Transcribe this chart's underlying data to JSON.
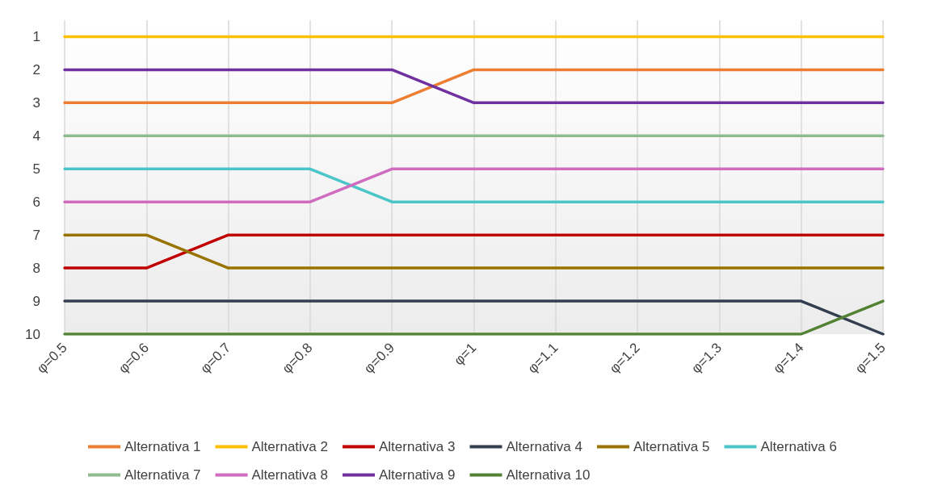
{
  "chart_data": {
    "type": "line",
    "categories": [
      "φ=0.5",
      "φ=0.6",
      "φ=0.7",
      "φ=0.8",
      "φ=0.9",
      "φ=1",
      "φ=1.1",
      "φ=1.2",
      "φ=1.3",
      "φ=1.4",
      "φ=1.5"
    ],
    "ylim": [
      10,
      0.5
    ],
    "yticks": [
      1,
      2,
      3,
      4,
      5,
      6,
      7,
      8,
      9,
      10
    ],
    "grid": "x",
    "legend": "bottom",
    "marker": "none",
    "line_style": "solid",
    "series": [
      {
        "name": "Alternativa 1",
        "color": "#ed7d31",
        "values": [
          3,
          3,
          3,
          3,
          3,
          2,
          2,
          2,
          2,
          2,
          2
        ]
      },
      {
        "name": "Alternativa 2",
        "color": "#ffc000",
        "values": [
          1,
          1,
          1,
          1,
          1,
          1,
          1,
          1,
          1,
          1,
          1
        ]
      },
      {
        "name": "Alternativa 3",
        "color": "#c00000",
        "values": [
          8,
          8,
          7,
          7,
          7,
          7,
          7,
          7,
          7,
          7,
          7
        ]
      },
      {
        "name": "Alternativa 4",
        "color": "#333f50",
        "values": [
          9,
          9,
          9,
          9,
          9,
          9,
          9,
          9,
          9,
          9,
          10
        ]
      },
      {
        "name": "Alternativa 5",
        "color": "#997300",
        "values": [
          7,
          7,
          8,
          8,
          8,
          8,
          8,
          8,
          8,
          8,
          8
        ]
      },
      {
        "name": "Alternativa 6",
        "color": "#4bc6c8",
        "values": [
          5,
          5,
          5,
          5,
          6,
          6,
          6,
          6,
          6,
          6,
          6
        ]
      },
      {
        "name": "Alternativa 7",
        "color": "#8fbc8f",
        "values": [
          4,
          4,
          4,
          4,
          4,
          4,
          4,
          4,
          4,
          4,
          4
        ]
      },
      {
        "name": "Alternativa 8",
        "color": "#d06cc0",
        "values": [
          6,
          6,
          6,
          6,
          5,
          5,
          5,
          5,
          5,
          5,
          5
        ]
      },
      {
        "name": "Alternativa 9",
        "color": "#7030a0",
        "values": [
          2,
          2,
          2,
          2,
          2,
          3,
          3,
          3,
          3,
          3,
          3
        ]
      },
      {
        "name": "Alternativa 10",
        "color": "#548235",
        "values": [
          10,
          10,
          10,
          10,
          10,
          10,
          10,
          10,
          10,
          10,
          9
        ]
      }
    ]
  }
}
